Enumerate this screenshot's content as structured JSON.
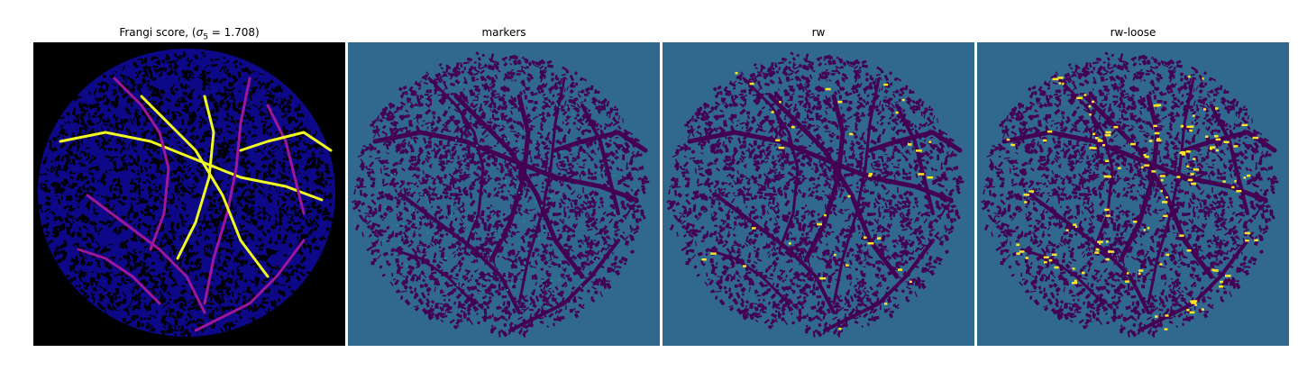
{
  "panels": [
    {
      "title_main": "Frangi score, (",
      "title_sigma": "σ",
      "title_sub": "5",
      "title_rest": " = 1.708)",
      "colormap": "plasma",
      "background": "#000000"
    },
    {
      "title": "markers",
      "colormap": "viridis",
      "background": "#31688e"
    },
    {
      "title": "rw",
      "colormap": "viridis",
      "background": "#31688e"
    },
    {
      "title": "rw-loose",
      "colormap": "viridis",
      "background": "#31688e"
    }
  ],
  "colors": {
    "viridis_low": "#440154",
    "viridis_mid": "#31688e",
    "viridis_teal": "#21918c",
    "viridis_high": "#fde725",
    "plasma_low": "#0d0887",
    "plasma_mid": "#9c179e",
    "plasma_high": "#f0f921"
  }
}
